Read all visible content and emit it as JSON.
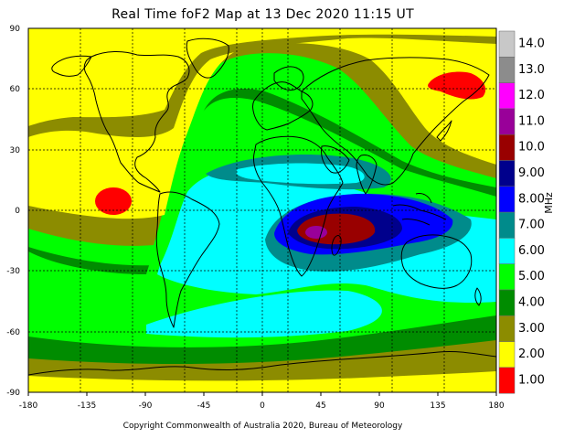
{
  "title": "Real Time foF2 Map at 13 Dec 2020 11:15 UT",
  "copyright": "Copyright Commonwealth of Australia 2020, Bureau of Meteorology",
  "x_ticks": [
    "-180",
    "-135",
    "-90",
    "-45",
    "0",
    "45",
    "90",
    "135",
    "180"
  ],
  "y_ticks": [
    "90",
    "60",
    "30",
    "0",
    "-30",
    "-60",
    "-90"
  ],
  "colorbar": {
    "unit": "MHz",
    "levels": [
      {
        "label": "14.0",
        "color": "#c8c8c8"
      },
      {
        "label": "13.0",
        "color": "#8c8c8c"
      },
      {
        "label": "12.0",
        "color": "#ff00ff"
      },
      {
        "label": "11.0",
        "color": "#990099"
      },
      {
        "label": "10.0",
        "color": "#990000"
      },
      {
        "label": "9.00",
        "color": "#00008c"
      },
      {
        "label": "8.00",
        "color": "#0000ff"
      },
      {
        "label": "7.00",
        "color": "#008b8b"
      },
      {
        "label": "6.00",
        "color": "#00ffff"
      },
      {
        "label": "5.00",
        "color": "#00ff00"
      },
      {
        "label": "4.00",
        "color": "#008c00"
      },
      {
        "label": "3.00",
        "color": "#8c8c00"
      },
      {
        "label": "2.00",
        "color": "#ffff00"
      },
      {
        "label": "1.00",
        "color": "#ff0000"
      }
    ]
  }
}
